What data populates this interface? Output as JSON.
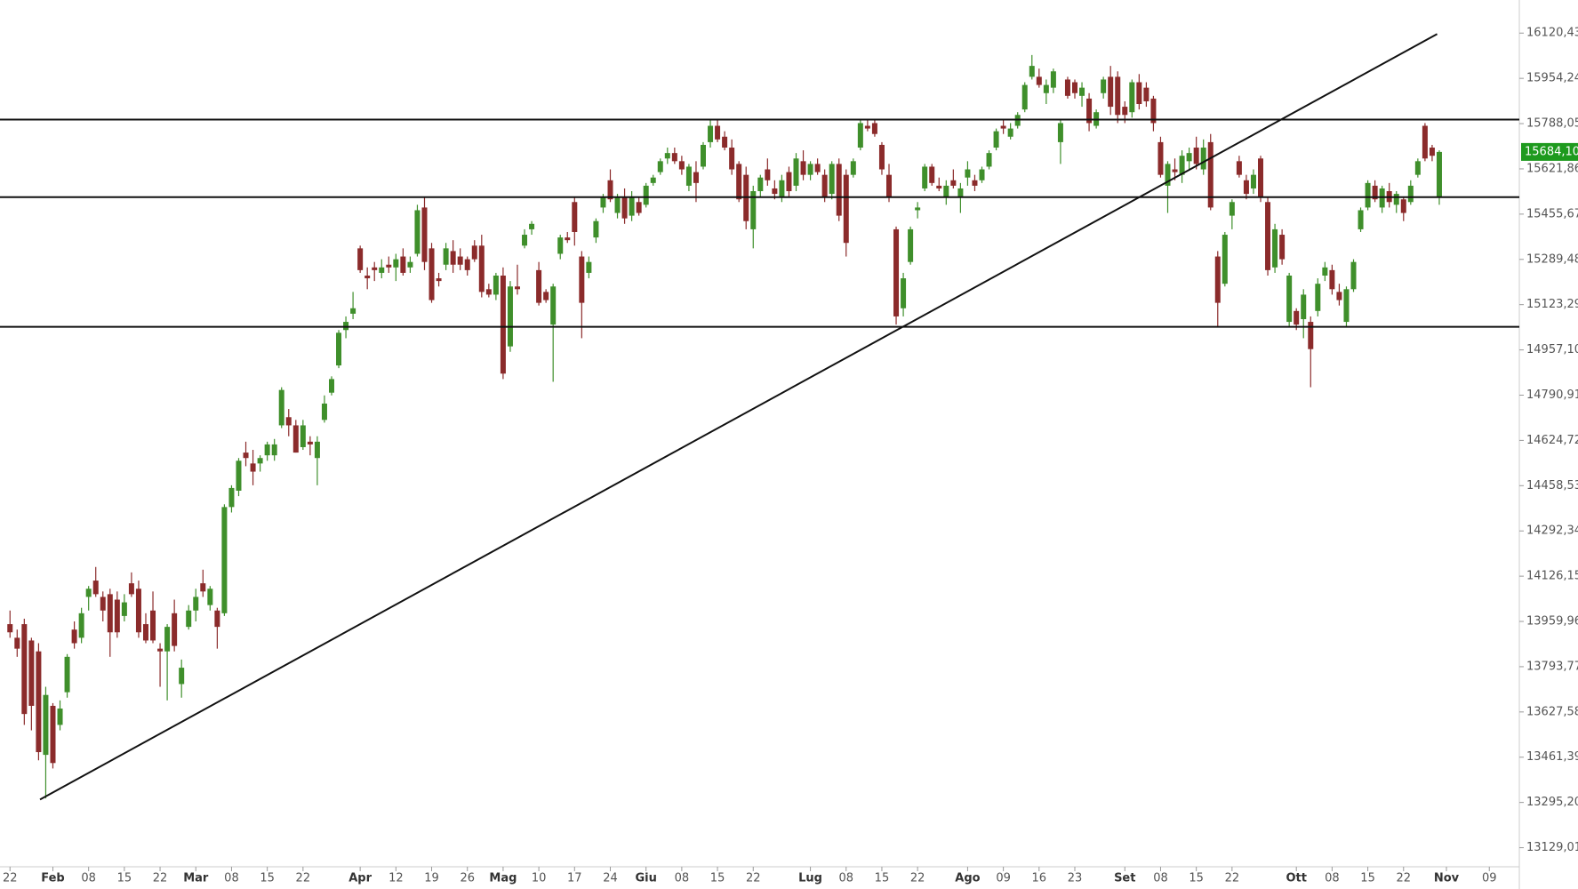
{
  "chart_data": {
    "type": "candlestick",
    "up_color": "#3f8f2b",
    "down_color": "#8b2b2b",
    "ylim": [
      13059,
      16242
    ],
    "yticks": [
      {
        "value": 16120.43,
        "label": "16120,43"
      },
      {
        "value": 15954.24,
        "label": "15954,24"
      },
      {
        "value": 15788.05,
        "label": "15788,05"
      },
      {
        "value": 15621.86,
        "label": "15621,86"
      },
      {
        "value": 15455.67,
        "label": "15455,67"
      },
      {
        "value": 15289.48,
        "label": "15289,48"
      },
      {
        "value": 15123.29,
        "label": "15123,29"
      },
      {
        "value": 14957.1,
        "label": "14957,10"
      },
      {
        "value": 14790.91,
        "label": "14790,91"
      },
      {
        "value": 14624.72,
        "label": "14624,72"
      },
      {
        "value": 14458.53,
        "label": "14458,53"
      },
      {
        "value": 14292.34,
        "label": "14292,34"
      },
      {
        "value": 14126.15,
        "label": "14126,15"
      },
      {
        "value": 13959.96,
        "label": "13959,96"
      },
      {
        "value": 13793.77,
        "label": "13793,77"
      },
      {
        "value": 13627.58,
        "label": "13627,58"
      },
      {
        "value": 13461.39,
        "label": "13461,39"
      },
      {
        "value": 13295.2,
        "label": "13295,20"
      },
      {
        "value": 13129.01,
        "label": "13129,01"
      }
    ],
    "xlim": [
      -1.4,
      211.2
    ],
    "xticks": [
      {
        "value": 0,
        "label": "22"
      },
      {
        "value": 6,
        "label": "Feb"
      },
      {
        "value": 11,
        "label": "08"
      },
      {
        "value": 16,
        "label": "15"
      },
      {
        "value": 21,
        "label": "22"
      },
      {
        "value": 26,
        "label": "Mar"
      },
      {
        "value": 31,
        "label": "08"
      },
      {
        "value": 36,
        "label": "15"
      },
      {
        "value": 41,
        "label": "22"
      },
      {
        "value": 49,
        "label": "Apr"
      },
      {
        "value": 54,
        "label": "12"
      },
      {
        "value": 59,
        "label": "19"
      },
      {
        "value": 64,
        "label": "26"
      },
      {
        "value": 69,
        "label": "Mag"
      },
      {
        "value": 74,
        "label": "10"
      },
      {
        "value": 79,
        "label": "17"
      },
      {
        "value": 84,
        "label": "24"
      },
      {
        "value": 89,
        "label": "Giu"
      },
      {
        "value": 94,
        "label": "08"
      },
      {
        "value": 99,
        "label": "15"
      },
      {
        "value": 104,
        "label": "22"
      },
      {
        "value": 112,
        "label": "Lug"
      },
      {
        "value": 117,
        "label": "08"
      },
      {
        "value": 122,
        "label": "15"
      },
      {
        "value": 127,
        "label": "22"
      },
      {
        "value": 134,
        "label": "Ago"
      },
      {
        "value": 139,
        "label": "09"
      },
      {
        "value": 144,
        "label": "16"
      },
      {
        "value": 149,
        "label": "23"
      },
      {
        "value": 156,
        "label": "Set"
      },
      {
        "value": 161,
        "label": "08"
      },
      {
        "value": 166,
        "label": "15"
      },
      {
        "value": 171,
        "label": "22"
      },
      {
        "value": 180,
        "label": "Ott"
      },
      {
        "value": 185,
        "label": "08"
      },
      {
        "value": 190,
        "label": "15"
      },
      {
        "value": 195,
        "label": "22"
      },
      {
        "value": 201,
        "label": "Nov"
      },
      {
        "value": 207,
        "label": "09"
      }
    ],
    "levels": [
      15803,
      15518,
      15042
    ],
    "trend_line": {
      "x": [
        4.2,
        199.7
      ],
      "y": [
        13306,
        16117
      ]
    },
    "last_price": {
      "value": 15684.1,
      "label": "15684,10",
      "color": "#1e9a1e"
    },
    "ohlc": [
      [
        13950,
        14000,
        13900,
        13920
      ],
      [
        13900,
        13930,
        13830,
        13860
      ],
      [
        13950,
        13970,
        13580,
        13620
      ],
      [
        13890,
        13900,
        13560,
        13650
      ],
      [
        13850,
        13880,
        13450,
        13480
      ],
      [
        13470,
        13720,
        13310,
        13690
      ],
      [
        13650,
        13660,
        13420,
        13440
      ],
      [
        13580,
        13670,
        13560,
        13640
      ],
      [
        13700,
        13840,
        13680,
        13830
      ],
      [
        13930,
        13960,
        13860,
        13880
      ],
      [
        13900,
        14010,
        13880,
        13990
      ],
      [
        14050,
        14090,
        14000,
        14080
      ],
      [
        14110,
        14160,
        14050,
        14060
      ],
      [
        14050,
        14070,
        13960,
        14000
      ],
      [
        14060,
        14080,
        13830,
        13920
      ],
      [
        14040,
        14070,
        13900,
        13920
      ],
      [
        13980,
        14060,
        13960,
        14030
      ],
      [
        14100,
        14140,
        14050,
        14060
      ],
      [
        14080,
        14110,
        13900,
        13920
      ],
      [
        13950,
        13990,
        13880,
        13890
      ],
      [
        14000,
        14070,
        13880,
        13890
      ],
      [
        13860,
        13880,
        13720,
        13850
      ],
      [
        13850,
        13950,
        13670,
        13940
      ],
      [
        13990,
        14040,
        13850,
        13870
      ],
      [
        13730,
        13820,
        13680,
        13790
      ],
      [
        13940,
        14020,
        13930,
        14000
      ],
      [
        14000,
        14080,
        13960,
        14050
      ],
      [
        14100,
        14150,
        14050,
        14070
      ],
      [
        14020,
        14090,
        14000,
        14080
      ],
      [
        14000,
        14010,
        13860,
        13940
      ],
      [
        13990,
        14390,
        13980,
        14380
      ],
      [
        14380,
        14460,
        14360,
        14450
      ],
      [
        14440,
        14560,
        14420,
        14550
      ],
      [
        14580,
        14620,
        14530,
        14560
      ],
      [
        14540,
        14590,
        14460,
        14510
      ],
      [
        14540,
        14570,
        14510,
        14560
      ],
      [
        14570,
        14620,
        14550,
        14610
      ],
      [
        14570,
        14630,
        14550,
        14610
      ],
      [
        14680,
        14820,
        14670,
        14810
      ],
      [
        14710,
        14740,
        14640,
        14680
      ],
      [
        14680,
        14700,
        14580,
        14580
      ],
      [
        14600,
        14700,
        14590,
        14680
      ],
      [
        14620,
        14640,
        14570,
        14610
      ],
      [
        14560,
        14640,
        14460,
        14620
      ],
      [
        14700,
        14790,
        14690,
        14760
      ],
      [
        14800,
        14860,
        14790,
        14850
      ],
      [
        14900,
        15030,
        14890,
        15020
      ],
      [
        15030,
        15080,
        15000,
        15060
      ],
      [
        15090,
        15170,
        15070,
        15110
      ],
      [
        15330,
        15340,
        15240,
        15250
      ],
      [
        15230,
        15260,
        15180,
        15220
      ],
      [
        15260,
        15280,
        15210,
        15250
      ],
      [
        15240,
        15290,
        15220,
        15260
      ],
      [
        15270,
        15300,
        15240,
        15260
      ],
      [
        15260,
        15310,
        15210,
        15290
      ],
      [
        15300,
        15330,
        15230,
        15240
      ],
      [
        15260,
        15300,
        15240,
        15280
      ],
      [
        15310,
        15490,
        15300,
        15470
      ],
      [
        15480,
        15520,
        15250,
        15280
      ],
      [
        15330,
        15350,
        15130,
        15140
      ],
      [
        15220,
        15240,
        15190,
        15210
      ],
      [
        15270,
        15350,
        15250,
        15330
      ],
      [
        15320,
        15360,
        15240,
        15270
      ],
      [
        15300,
        15330,
        15250,
        15270
      ],
      [
        15290,
        15300,
        15230,
        15250
      ],
      [
        15340,
        15360,
        15280,
        15290
      ],
      [
        15340,
        15380,
        15150,
        15170
      ],
      [
        15180,
        15200,
        15150,
        15160
      ],
      [
        15160,
        15240,
        15140,
        15230
      ],
      [
        15230,
        15260,
        14850,
        14870
      ],
      [
        14970,
        15210,
        14950,
        15190
      ],
      [
        15190,
        15270,
        15160,
        15180
      ],
      [
        15340,
        15400,
        15330,
        15380
      ],
      [
        15400,
        15430,
        15380,
        15420
      ],
      [
        15250,
        15280,
        15120,
        15130
      ],
      [
        15170,
        15180,
        15130,
        15140
      ],
      [
        15050,
        15200,
        14840,
        15190
      ],
      [
        15310,
        15380,
        15290,
        15370
      ],
      [
        15370,
        15390,
        15350,
        15360
      ],
      [
        15500,
        15520,
        15340,
        15390
      ],
      [
        15300,
        15320,
        15000,
        15130
      ],
      [
        15240,
        15300,
        15220,
        15280
      ],
      [
        15370,
        15440,
        15350,
        15430
      ],
      [
        15480,
        15530,
        15460,
        15520
      ],
      [
        15580,
        15620,
        15500,
        15510
      ],
      [
        15460,
        15530,
        15440,
        15520
      ],
      [
        15520,
        15550,
        15420,
        15440
      ],
      [
        15450,
        15540,
        15430,
        15520
      ],
      [
        15500,
        15520,
        15450,
        15460
      ],
      [
        15490,
        15570,
        15480,
        15560
      ],
      [
        15570,
        15600,
        15560,
        15590
      ],
      [
        15610,
        15660,
        15600,
        15650
      ],
      [
        15660,
        15700,
        15640,
        15680
      ],
      [
        15680,
        15700,
        15640,
        15650
      ],
      [
        15650,
        15670,
        15600,
        15620
      ],
      [
        15560,
        15640,
        15540,
        15630
      ],
      [
        15610,
        15650,
        15500,
        15570
      ],
      [
        15630,
        15720,
        15620,
        15710
      ],
      [
        15720,
        15800,
        15700,
        15780
      ],
      [
        15780,
        15800,
        15720,
        15730
      ],
      [
        15740,
        15760,
        15690,
        15700
      ],
      [
        15700,
        15730,
        15600,
        15620
      ],
      [
        15640,
        15650,
        15500,
        15510
      ],
      [
        15600,
        15630,
        15400,
        15430
      ],
      [
        15400,
        15560,
        15330,
        15540
      ],
      [
        15540,
        15600,
        15520,
        15590
      ],
      [
        15620,
        15660,
        15560,
        15580
      ],
      [
        15550,
        15580,
        15510,
        15530
      ],
      [
        15520,
        15600,
        15500,
        15580
      ],
      [
        15610,
        15630,
        15520,
        15540
      ],
      [
        15560,
        15680,
        15540,
        15660
      ],
      [
        15650,
        15690,
        15580,
        15600
      ],
      [
        15600,
        15650,
        15580,
        15640
      ],
      [
        15640,
        15660,
        15600,
        15610
      ],
      [
        15600,
        15620,
        15500,
        15520
      ],
      [
        15530,
        15650,
        15510,
        15640
      ],
      [
        15640,
        15660,
        15430,
        15450
      ],
      [
        15600,
        15620,
        15300,
        15350
      ],
      [
        15600,
        15660,
        15590,
        15650
      ],
      [
        15700,
        15800,
        15690,
        15790
      ],
      [
        15780,
        15800,
        15760,
        15770
      ],
      [
        15790,
        15800,
        15740,
        15750
      ],
      [
        15710,
        15720,
        15600,
        15620
      ],
      [
        15600,
        15640,
        15500,
        15520
      ],
      [
        15400,
        15410,
        15050,
        15080
      ],
      [
        15110,
        15240,
        15080,
        15220
      ],
      [
        15280,
        15410,
        15270,
        15400
      ],
      [
        15470,
        15500,
        15440,
        15480
      ],
      [
        15550,
        15640,
        15540,
        15630
      ],
      [
        15630,
        15640,
        15560,
        15570
      ],
      [
        15560,
        15590,
        15540,
        15550
      ],
      [
        15520,
        15580,
        15490,
        15560
      ],
      [
        15580,
        15620,
        15550,
        15560
      ],
      [
        15520,
        15570,
        15460,
        15550
      ],
      [
        15590,
        15650,
        15560,
        15620
      ],
      [
        15580,
        15600,
        15540,
        15560
      ],
      [
        15580,
        15630,
        15570,
        15620
      ],
      [
        15630,
        15690,
        15620,
        15680
      ],
      [
        15700,
        15770,
        15690,
        15760
      ],
      [
        15780,
        15800,
        15750,
        15770
      ],
      [
        15740,
        15790,
        15730,
        15770
      ],
      [
        15780,
        15830,
        15770,
        15820
      ],
      [
        15840,
        15940,
        15830,
        15930
      ],
      [
        15960,
        16040,
        15950,
        16000
      ],
      [
        15960,
        15990,
        15920,
        15930
      ],
      [
        15900,
        15950,
        15860,
        15930
      ],
      [
        15920,
        15990,
        15900,
        15980
      ],
      [
        15720,
        15800,
        15640,
        15790
      ],
      [
        15950,
        15960,
        15880,
        15890
      ],
      [
        15940,
        15950,
        15880,
        15900
      ],
      [
        15890,
        15940,
        15850,
        15920
      ],
      [
        15880,
        15900,
        15760,
        15790
      ],
      [
        15780,
        15840,
        15770,
        15830
      ],
      [
        15900,
        15960,
        15880,
        15950
      ],
      [
        15960,
        16000,
        15820,
        15850
      ],
      [
        15960,
        15980,
        15790,
        15820
      ],
      [
        15850,
        15870,
        15790,
        15820
      ],
      [
        15830,
        15950,
        15810,
        15940
      ],
      [
        15940,
        15970,
        15840,
        15860
      ],
      [
        15920,
        15940,
        15850,
        15870
      ],
      [
        15880,
        15890,
        15760,
        15790
      ],
      [
        15720,
        15740,
        15590,
        15600
      ],
      [
        15560,
        15650,
        15460,
        15640
      ],
      [
        15620,
        15660,
        15580,
        15610
      ],
      [
        15600,
        15690,
        15570,
        15670
      ],
      [
        15650,
        15700,
        15620,
        15680
      ],
      [
        15700,
        15740,
        15620,
        15640
      ],
      [
        15620,
        15730,
        15600,
        15700
      ],
      [
        15720,
        15750,
        15470,
        15480
      ],
      [
        15300,
        15320,
        15040,
        15130
      ],
      [
        15200,
        15390,
        15190,
        15380
      ],
      [
        15450,
        15510,
        15400,
        15500
      ],
      [
        15650,
        15670,
        15590,
        15600
      ],
      [
        15580,
        15600,
        15510,
        15530
      ],
      [
        15550,
        15620,
        15530,
        15600
      ],
      [
        15660,
        15670,
        15500,
        15520
      ],
      [
        15500,
        15520,
        15230,
        15250
      ],
      [
        15260,
        15420,
        15240,
        15400
      ],
      [
        15380,
        15400,
        15270,
        15290
      ],
      [
        15060,
        15240,
        15040,
        15230
      ],
      [
        15100,
        15110,
        15030,
        15050
      ],
      [
        15070,
        15180,
        15000,
        15160
      ],
      [
        15060,
        15080,
        14820,
        14960
      ],
      [
        15100,
        15220,
        15080,
        15200
      ],
      [
        15230,
        15280,
        15210,
        15260
      ],
      [
        15250,
        15270,
        15160,
        15180
      ],
      [
        15170,
        15200,
        15120,
        15140
      ],
      [
        15060,
        15190,
        15040,
        15180
      ],
      [
        15180,
        15290,
        15170,
        15280
      ],
      [
        15400,
        15480,
        15390,
        15470
      ],
      [
        15480,
        15580,
        15470,
        15570
      ],
      [
        15560,
        15580,
        15500,
        15510
      ],
      [
        15480,
        15560,
        15460,
        15550
      ],
      [
        15540,
        15570,
        15480,
        15500
      ],
      [
        15490,
        15540,
        15460,
        15530
      ],
      [
        15510,
        15520,
        15430,
        15460
      ],
      [
        15500,
        15580,
        15490,
        15560
      ],
      [
        15600,
        15660,
        15590,
        15650
      ],
      [
        15780,
        15790,
        15650,
        15660
      ],
      [
        15700,
        15710,
        15650,
        15670
      ],
      [
        15520,
        15690,
        15490,
        15684.1
      ]
    ]
  }
}
